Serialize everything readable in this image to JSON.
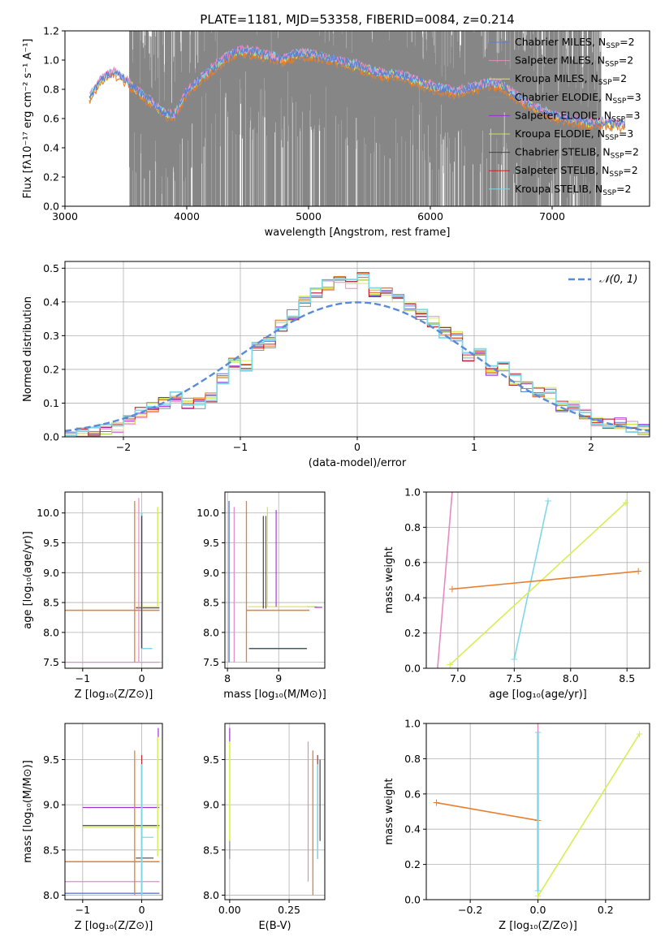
{
  "title": "PLATE=1181, MJD=53358, FIBERID=0084, z=0.214",
  "colors": {
    "chabrier_miles": "#5b7fd1",
    "salpeter_miles": "#e78ac3",
    "kroupa_miles": "#d7ee52",
    "chabrier_elodie": "#8c8c8c",
    "salpeter_elodie": "#9b2fd6",
    "kroupa_elodie": "#c7e64f",
    "chabrier_stelib": "#444444",
    "salpeter_stelib": "#c0262d",
    "kroupa_stelib": "#7ed7e6",
    "orange": "#e97e2c",
    "data_gray": "#808080",
    "normal_curve": "#5a8bd6"
  },
  "legend": [
    {
      "label": "Chabrier MILES, N",
      "sub": "SSP",
      "tail": "=2",
      "color_key": "chabrier_miles"
    },
    {
      "label": "Salpeter MILES, N",
      "sub": "SSP",
      "tail": "=2",
      "color_key": "salpeter_miles"
    },
    {
      "label": "Kroupa MILES, N",
      "sub": "SSP",
      "tail": "=2",
      "color_key": "kroupa_miles"
    },
    {
      "label": "Chabrier ELODIE, N",
      "sub": "SSP",
      "tail": "=3",
      "color_key": "chabrier_elodie"
    },
    {
      "label": "Salpeter ELODIE, N",
      "sub": "SSP",
      "tail": "=3",
      "color_key": "salpeter_elodie"
    },
    {
      "label": "Kroupa ELODIE, N",
      "sub": "SSP",
      "tail": "=3",
      "color_key": "kroupa_elodie"
    },
    {
      "label": "Chabrier STELIB, N",
      "sub": "SSP",
      "tail": "=2",
      "color_key": "chabrier_stelib"
    },
    {
      "label": "Salpeter STELIB, N",
      "sub": "SSP",
      "tail": "=2",
      "color_key": "salpeter_stelib"
    },
    {
      "label": "Kroupa STELIB, N",
      "sub": "SSP",
      "tail": "=2",
      "color_key": "kroupa_stelib"
    }
  ],
  "chart_data": [
    {
      "id": "spectrum",
      "type": "line",
      "xlabel": "wavelength [Angstrom, rest frame]",
      "ylabel": "Flux [fλ10⁻¹⁷ erg cm⁻² s⁻¹ A⁻¹]",
      "xlim": [
        3000,
        7800
      ],
      "ylim": [
        0.0,
        1.2
      ],
      "xticks": [
        3000,
        4000,
        5000,
        6000,
        7000
      ],
      "yticks": [
        0.0,
        0.2,
        0.4,
        0.6,
        0.8,
        1.0,
        1.2
      ],
      "data_coverage_x": [
        3530,
        7400
      ],
      "continuum_x": [
        3200,
        3300,
        3400,
        3500,
        3600,
        3700,
        3800,
        3900,
        4000,
        4100,
        4200,
        4300,
        4400,
        4500,
        4600,
        4700,
        4800,
        4900,
        5000,
        5100,
        5200,
        5300,
        5400,
        5500,
        5600,
        5700,
        5800,
        5900,
        6000,
        6100,
        6200,
        6300,
        6400,
        6500,
        6600,
        6700,
        6800,
        6900,
        7000,
        7100,
        7200,
        7300,
        7400,
        7500,
        7600
      ],
      "continuum_y": [
        0.74,
        0.86,
        0.92,
        0.86,
        0.78,
        0.72,
        0.64,
        0.62,
        0.78,
        0.86,
        0.93,
        1.0,
        1.05,
        1.06,
        1.04,
        1.02,
        1.0,
        1.04,
        1.04,
        1.02,
        1.0,
        0.98,
        0.96,
        0.93,
        0.9,
        0.9,
        0.88,
        0.85,
        0.82,
        0.8,
        0.78,
        0.8,
        0.82,
        0.84,
        0.82,
        0.75,
        0.7,
        0.66,
        0.62,
        0.6,
        0.58,
        0.57,
        0.57,
        0.56,
        0.56
      ]
    },
    {
      "id": "residuals",
      "type": "line",
      "xlabel": "(data-model)/error",
      "ylabel": "Normed distribution",
      "xlim": [
        -2.5,
        2.5
      ],
      "ylim": [
        0.0,
        0.52
      ],
      "xticks": [
        -2,
        -1,
        0,
        1,
        2
      ],
      "yticks": [
        0.0,
        0.1,
        0.2,
        0.3,
        0.4,
        0.5
      ],
      "legend": "𝒩(0, 1)",
      "bin_centers": [
        -2.45,
        -2.35,
        -2.25,
        -2.15,
        -2.05,
        -1.95,
        -1.85,
        -1.75,
        -1.65,
        -1.55,
        -1.45,
        -1.35,
        -1.25,
        -1.15,
        -1.05,
        -0.95,
        -0.85,
        -0.75,
        -0.65,
        -0.55,
        -0.45,
        -0.35,
        -0.25,
        -0.15,
        -0.05,
        0.05,
        0.15,
        0.25,
        0.35,
        0.45,
        0.55,
        0.65,
        0.75,
        0.85,
        0.95,
        1.05,
        1.15,
        1.25,
        1.35,
        1.45,
        1.55,
        1.65,
        1.75,
        1.85,
        1.95,
        2.05,
        2.15,
        2.25,
        2.35,
        2.45
      ],
      "hist_values": [
        0.005,
        0.01,
        0.015,
        0.02,
        0.03,
        0.05,
        0.07,
        0.09,
        0.1,
        0.12,
        0.1,
        0.1,
        0.12,
        0.17,
        0.22,
        0.21,
        0.27,
        0.28,
        0.33,
        0.36,
        0.4,
        0.43,
        0.45,
        0.46,
        0.45,
        0.47,
        0.43,
        0.43,
        0.41,
        0.39,
        0.36,
        0.34,
        0.31,
        0.3,
        0.24,
        0.25,
        0.2,
        0.21,
        0.17,
        0.15,
        0.13,
        0.13,
        0.09,
        0.09,
        0.07,
        0.05,
        0.04,
        0.04,
        0.03,
        0.02
      ]
    },
    {
      "id": "age_vs_Z",
      "type": "scatter",
      "xlabel": "Z [log₁₀(Z/Z⊙)]",
      "ylabel": "age  [log₁₀(age/yr)]",
      "xlim": [
        -1.3,
        0.35
      ],
      "ylim": [
        7.4,
        10.35
      ],
      "xticks": [
        -1,
        0
      ],
      "yticks": [
        7.5,
        8.0,
        8.5,
        9.0,
        9.5,
        10.0
      ]
    },
    {
      "id": "age_vs_mass",
      "type": "scatter",
      "xlabel": "mass [log₁₀(M/M⊙)]",
      "ylabel": "",
      "xlim": [
        7.95,
        9.9
      ],
      "ylim": [
        7.4,
        10.35
      ],
      "xticks": [
        8,
        9
      ],
      "yticks": [
        7.5,
        8.0,
        8.5,
        9.0,
        9.5,
        10.0
      ]
    },
    {
      "id": "weight_vs_age",
      "type": "line",
      "xlabel": "age  [log₁₀(age/yr)]",
      "ylabel": "mass weight",
      "xlim": [
        6.72,
        8.7
      ],
      "ylim": [
        0.0,
        1.0
      ],
      "xticks": [
        7.0,
        7.5,
        8.0,
        8.5
      ],
      "yticks": [
        0.0,
        0.2,
        0.4,
        0.6,
        0.8,
        1.0
      ],
      "series": [
        {
          "color_key": "salpeter_miles",
          "x": [
            6.82,
            6.95
          ],
          "y": [
            0.0,
            1.0
          ]
        },
        {
          "color_key": "kroupa_stelib",
          "x": [
            7.5,
            7.8
          ],
          "y": [
            0.05,
            0.95
          ]
        },
        {
          "color_key": "kroupa_miles",
          "x": [
            6.93,
            8.49
          ],
          "y": [
            0.02,
            0.94
          ]
        },
        {
          "color_key": "orange",
          "x": [
            6.95,
            8.6
          ],
          "y": [
            0.45,
            0.55
          ]
        }
      ]
    },
    {
      "id": "mass_vs_Z",
      "type": "scatter",
      "xlabel": "Z [log₁₀(Z/Z⊙)]",
      "ylabel": "mass [log₁₀(M/M⊙)]",
      "xlim": [
        -1.3,
        0.35
      ],
      "ylim": [
        7.95,
        9.9
      ],
      "xticks": [
        -1,
        0
      ],
      "yticks": [
        8.0,
        8.5,
        9.0,
        9.5
      ]
    },
    {
      "id": "mass_vs_ebv",
      "type": "scatter",
      "xlabel": "E(B-V)",
      "ylabel": "",
      "xlim": [
        -0.02,
        0.4
      ],
      "ylim": [
        7.95,
        9.9
      ],
      "xticks": [
        0.0,
        0.25
      ],
      "yticks": [
        8.0,
        8.5,
        9.0,
        9.5
      ]
    },
    {
      "id": "weight_vs_Z",
      "type": "line",
      "xlabel": "Z [log₁₀(Z/Z⊙)]",
      "ylabel": "mass weight",
      "xlim": [
        -0.33,
        0.33
      ],
      "ylim": [
        0.0,
        1.0
      ],
      "xticks": [
        -0.2,
        0.0,
        0.2
      ],
      "yticks": [
        0.0,
        0.2,
        0.4,
        0.6,
        0.8,
        1.0
      ],
      "series": [
        {
          "color_key": "orange",
          "x": [
            -0.3,
            0.0
          ],
          "y": [
            0.55,
            0.45
          ]
        },
        {
          "color_key": "kroupa_stelib",
          "x": [
            0.0,
            0.0
          ],
          "y": [
            0.05,
            0.95
          ]
        },
        {
          "color_key": "kroupa_miles",
          "x": [
            0.0,
            0.3
          ],
          "y": [
            0.02,
            0.94
          ]
        }
      ]
    }
  ]
}
